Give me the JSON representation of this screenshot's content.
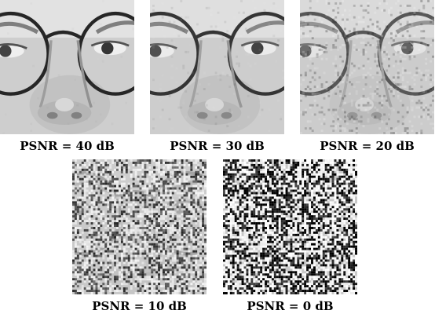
{
  "figure": {
    "panels": [
      {
        "id": "p40",
        "caption": "PSNR = 40 dB",
        "psnr_db": 40
      },
      {
        "id": "p30",
        "caption": "PSNR = 30 dB",
        "psnr_db": 30
      },
      {
        "id": "p20",
        "caption": "PSNR = 20 dB",
        "psnr_db": 20
      },
      {
        "id": "p10",
        "caption": "PSNR = 10 dB",
        "psnr_db": 10
      },
      {
        "id": "p0",
        "caption": "PSNR = 0 dB",
        "psnr_db": 0
      }
    ]
  }
}
